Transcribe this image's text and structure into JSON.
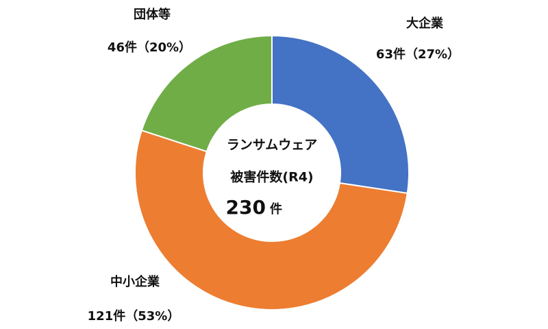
{
  "chart_data": {
    "type": "donut",
    "categories": [
      "大企業",
      "中小企業",
      "団体等"
    ],
    "values": [
      63,
      121,
      46
    ],
    "value_labels": [
      "63件（27%）",
      "121件（53%）",
      "46件（20%）"
    ],
    "colors": [
      "#4472c4",
      "#ed7d31",
      "#70ad47"
    ],
    "center_text": [
      "ランサムウェア",
      "被害件数(R4)"
    ],
    "total": 230,
    "total_unit": "件"
  }
}
